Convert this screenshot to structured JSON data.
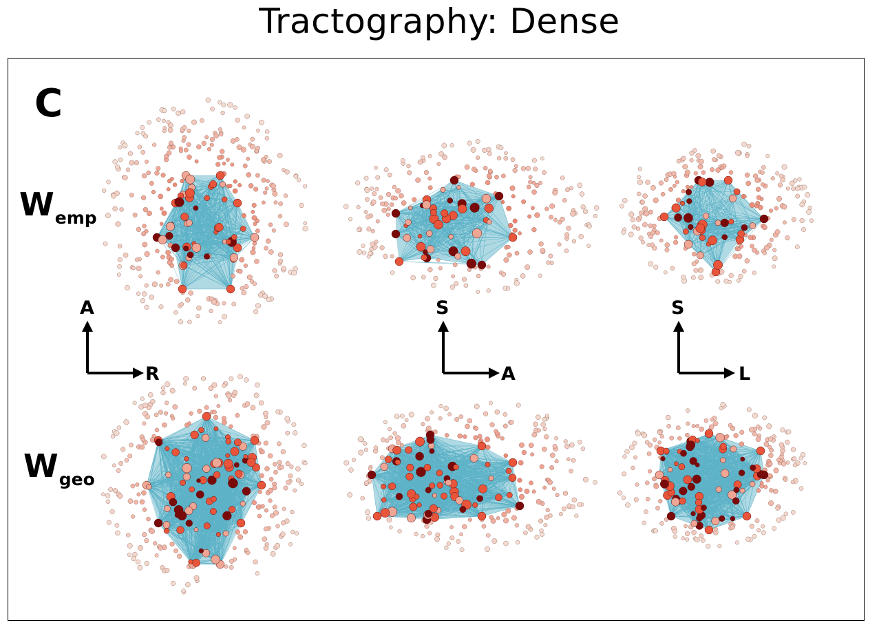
{
  "title": "Tractography: Dense",
  "panel_label": "C",
  "rows": [
    {
      "letter": "W",
      "subscript": "emp"
    },
    {
      "letter": "W",
      "subscript": "geo"
    }
  ],
  "orientation_axes": [
    {
      "vertical": "A",
      "horizontal": "R"
    },
    {
      "vertical": "S",
      "horizontal": "A"
    },
    {
      "vertical": "S",
      "horizontal": "L"
    }
  ],
  "colors": {
    "edge": "#1b93b0",
    "node_dark": "#7a0a0a",
    "node_mid": "#e8553a",
    "node_light": "#f3dcd2",
    "axis": "#000000"
  }
}
